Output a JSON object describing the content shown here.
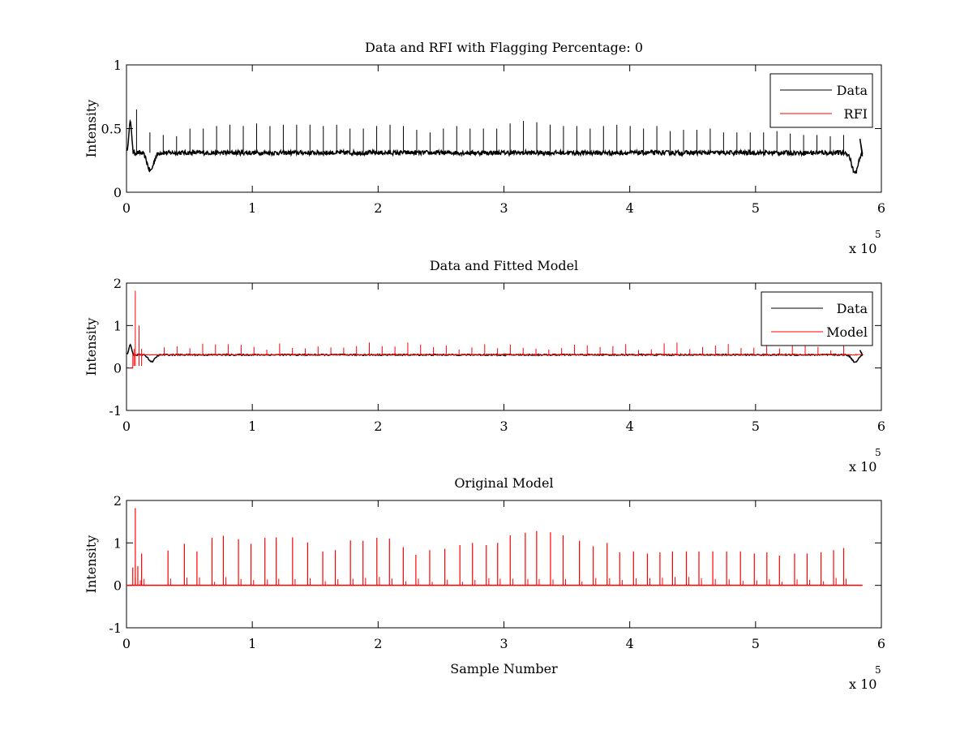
{
  "chart_data": [
    {
      "type": "line",
      "title": "Data and RFI with Flagging Percentage: 0",
      "xlabel": "",
      "ylabel": "Intensity",
      "xlim": [
        0,
        6
      ],
      "ylim": [
        0,
        1
      ],
      "xticks": [
        "0",
        "1",
        "2",
        "3",
        "4",
        "5",
        "6"
      ],
      "yticks": [
        "0",
        "0.5",
        "1"
      ],
      "x_multiplier": "x 10",
      "x_multiplier_exp": "5",
      "grid": false,
      "legend_position": "top-right",
      "legend": [
        "Data",
        "RFI"
      ],
      "series": [
        {
          "name": "Data",
          "color": "#000000",
          "baseline": 0.31,
          "features": {
            "dips": [
              {
                "x": 0.19,
                "y": 0.17
              },
              {
                "x": 5.79,
                "y": 0.15
              }
            ],
            "start_peak": {
              "x": 0.03,
              "y": 0.56
            },
            "end_x": 5.85,
            "spike_heights": [
              0.65,
              0.47,
              0.45,
              0.44,
              0.5,
              0.5,
              0.52,
              0.53,
              0.52,
              0.54,
              0.52,
              0.53,
              0.53,
              0.53,
              0.52,
              0.53,
              0.5,
              0.5,
              0.52,
              0.53,
              0.52,
              0.49,
              0.47,
              0.5,
              0.52,
              0.5,
              0.5,
              0.5,
              0.54,
              0.56,
              0.55,
              0.53,
              0.52,
              0.52,
              0.5,
              0.52,
              0.53,
              0.52,
              0.5,
              0.52,
              0.48,
              0.49,
              0.49,
              0.5,
              0.47,
              0.47,
              0.47,
              0.47,
              0.48,
              0.46,
              0.45,
              0.45,
              0.44,
              0.45
            ]
          }
        },
        {
          "name": "RFI",
          "color": "#ff0000",
          "values": []
        }
      ]
    },
    {
      "type": "line",
      "title": "Data and Fitted Model",
      "xlabel": "",
      "ylabel": "Intensity",
      "xlim": [
        0,
        6
      ],
      "ylim": [
        -1,
        2
      ],
      "xticks": [
        "0",
        "1",
        "2",
        "3",
        "4",
        "5",
        "6"
      ],
      "yticks": [
        "-1",
        "0",
        "1",
        "2"
      ],
      "x_multiplier": "x 10",
      "x_multiplier_exp": "5",
      "grid": false,
      "legend_position": "top-right",
      "legend": [
        "Data",
        "Model"
      ],
      "series": [
        {
          "name": "Data",
          "color": "#000000",
          "baseline": 0.31
        },
        {
          "name": "Model",
          "color": "#ff0000",
          "baseline": 0.31,
          "max_spike": 1.82
        }
      ]
    },
    {
      "type": "line",
      "title": "Original Model",
      "xlabel": "Sample Number",
      "ylabel": "Intensity",
      "xlim": [
        0,
        6
      ],
      "ylim": [
        -1,
        2
      ],
      "xticks": [
        "0",
        "1",
        "2",
        "3",
        "4",
        "5",
        "6"
      ],
      "yticks": [
        "-1",
        "0",
        "1",
        "2"
      ],
      "x_multiplier": "x 10",
      "x_multiplier_exp": "5",
      "grid": false,
      "series": [
        {
          "name": "Model",
          "color": "#ff0000",
          "baseline": 0.0,
          "spikes": [
            [
              0.05,
              0.42
            ],
            [
              0.07,
              1.82
            ],
            [
              0.09,
              0.45
            ],
            [
              0.12,
              0.75
            ],
            [
              0.33,
              0.82
            ],
            [
              0.46,
              0.98
            ],
            [
              0.56,
              0.8
            ],
            [
              0.68,
              1.12
            ],
            [
              0.77,
              1.17
            ],
            [
              0.89,
              1.09
            ],
            [
              0.99,
              0.98
            ],
            [
              1.1,
              1.12
            ],
            [
              1.19,
              1.13
            ],
            [
              1.32,
              1.13
            ],
            [
              1.44,
              1.01
            ],
            [
              1.56,
              0.8
            ],
            [
              1.66,
              0.83
            ],
            [
              1.78,
              1.06
            ],
            [
              1.88,
              1.05
            ],
            [
              1.99,
              1.12
            ],
            [
              2.09,
              1.1
            ],
            [
              2.2,
              0.9
            ],
            [
              2.3,
              0.72
            ],
            [
              2.41,
              0.83
            ],
            [
              2.53,
              0.86
            ],
            [
              2.65,
              0.95
            ],
            [
              2.75,
              1.0
            ],
            [
              2.86,
              0.95
            ],
            [
              2.95,
              1.0
            ],
            [
              3.05,
              1.18
            ],
            [
              3.17,
              1.24
            ],
            [
              3.26,
              1.28
            ],
            [
              3.37,
              1.25
            ],
            [
              3.47,
              1.18
            ],
            [
              3.6,
              1.05
            ],
            [
              3.71,
              0.92
            ],
            [
              3.82,
              1.0
            ],
            [
              3.92,
              0.78
            ],
            [
              4.03,
              0.8
            ],
            [
              4.14,
              0.75
            ],
            [
              4.24,
              0.78
            ],
            [
              4.34,
              0.8
            ],
            [
              4.45,
              0.8
            ],
            [
              4.55,
              0.8
            ],
            [
              4.66,
              0.8
            ],
            [
              4.77,
              0.8
            ],
            [
              4.88,
              0.8
            ],
            [
              4.99,
              0.75
            ],
            [
              5.09,
              0.78
            ],
            [
              5.19,
              0.7
            ],
            [
              5.31,
              0.75
            ],
            [
              5.41,
              0.75
            ],
            [
              5.52,
              0.78
            ],
            [
              5.62,
              0.83
            ],
            [
              5.7,
              0.88
            ]
          ],
          "end_x": 5.85
        }
      ]
    }
  ]
}
